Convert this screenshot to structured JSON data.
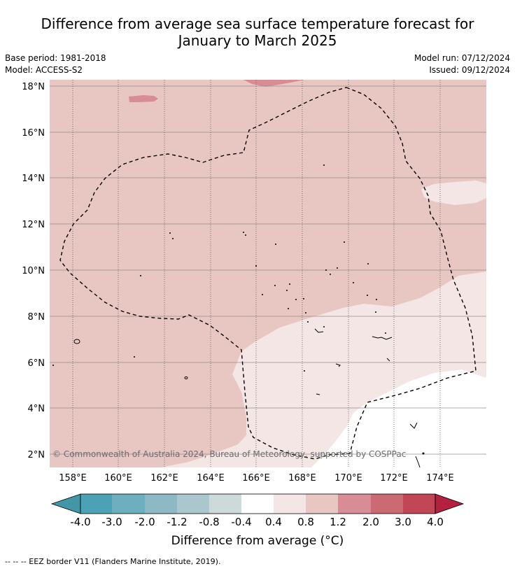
{
  "title_line1": "Difference from average sea surface temperature forecast for",
  "title_line2": "January to March 2025",
  "meta": {
    "base_period": "Base period: 1981-2018",
    "model": "Model: ACCESS-S2",
    "model_run": "Model run: 07/12/2024",
    "issued": "Issued: 09/12/2024"
  },
  "map": {
    "lat_labels": [
      "18°N",
      "16°N",
      "14°N",
      "12°N",
      "10°N",
      "8°N",
      "6°N",
      "4°N",
      "2°N"
    ],
    "lon_labels": [
      "158°E",
      "160°E",
      "162°E",
      "164°E",
      "166°E",
      "168°E",
      "170°E",
      "172°E",
      "174°E"
    ],
    "copyright": "© Commonwealth of Australia 2024, Bureau of Meteorology, supported by COSPPac",
    "colors": {
      "band_0_8_1_2": "#e8c6c2",
      "band_0_4_0_8": "#f4e6e5",
      "band_m04_04": "#ffffff",
      "band_1_2_2_0": "#d88c95",
      "eez_border": "#000000"
    }
  },
  "colorbar": {
    "ticks": [
      "-4.0",
      "-3.0",
      "-2.0",
      "-1.2",
      "-0.8",
      "-0.4",
      "0.4",
      "0.8",
      "1.2",
      "2.0",
      "3.0",
      "4.0"
    ],
    "colors": [
      "#4396a5",
      "#4aa2b4",
      "#6eafbf",
      "#8db9c5",
      "#a9c7cc",
      "#ccdada",
      "#ffffff",
      "#f4e6e5",
      "#e8c6c2",
      "#d88c95",
      "#cc6a73",
      "#c14656",
      "#b4203f"
    ],
    "title": "Difference from average (°C)"
  },
  "footer": "--  --  -- EEZ border V11 (Flanders Marine Institute, 2019)."
}
